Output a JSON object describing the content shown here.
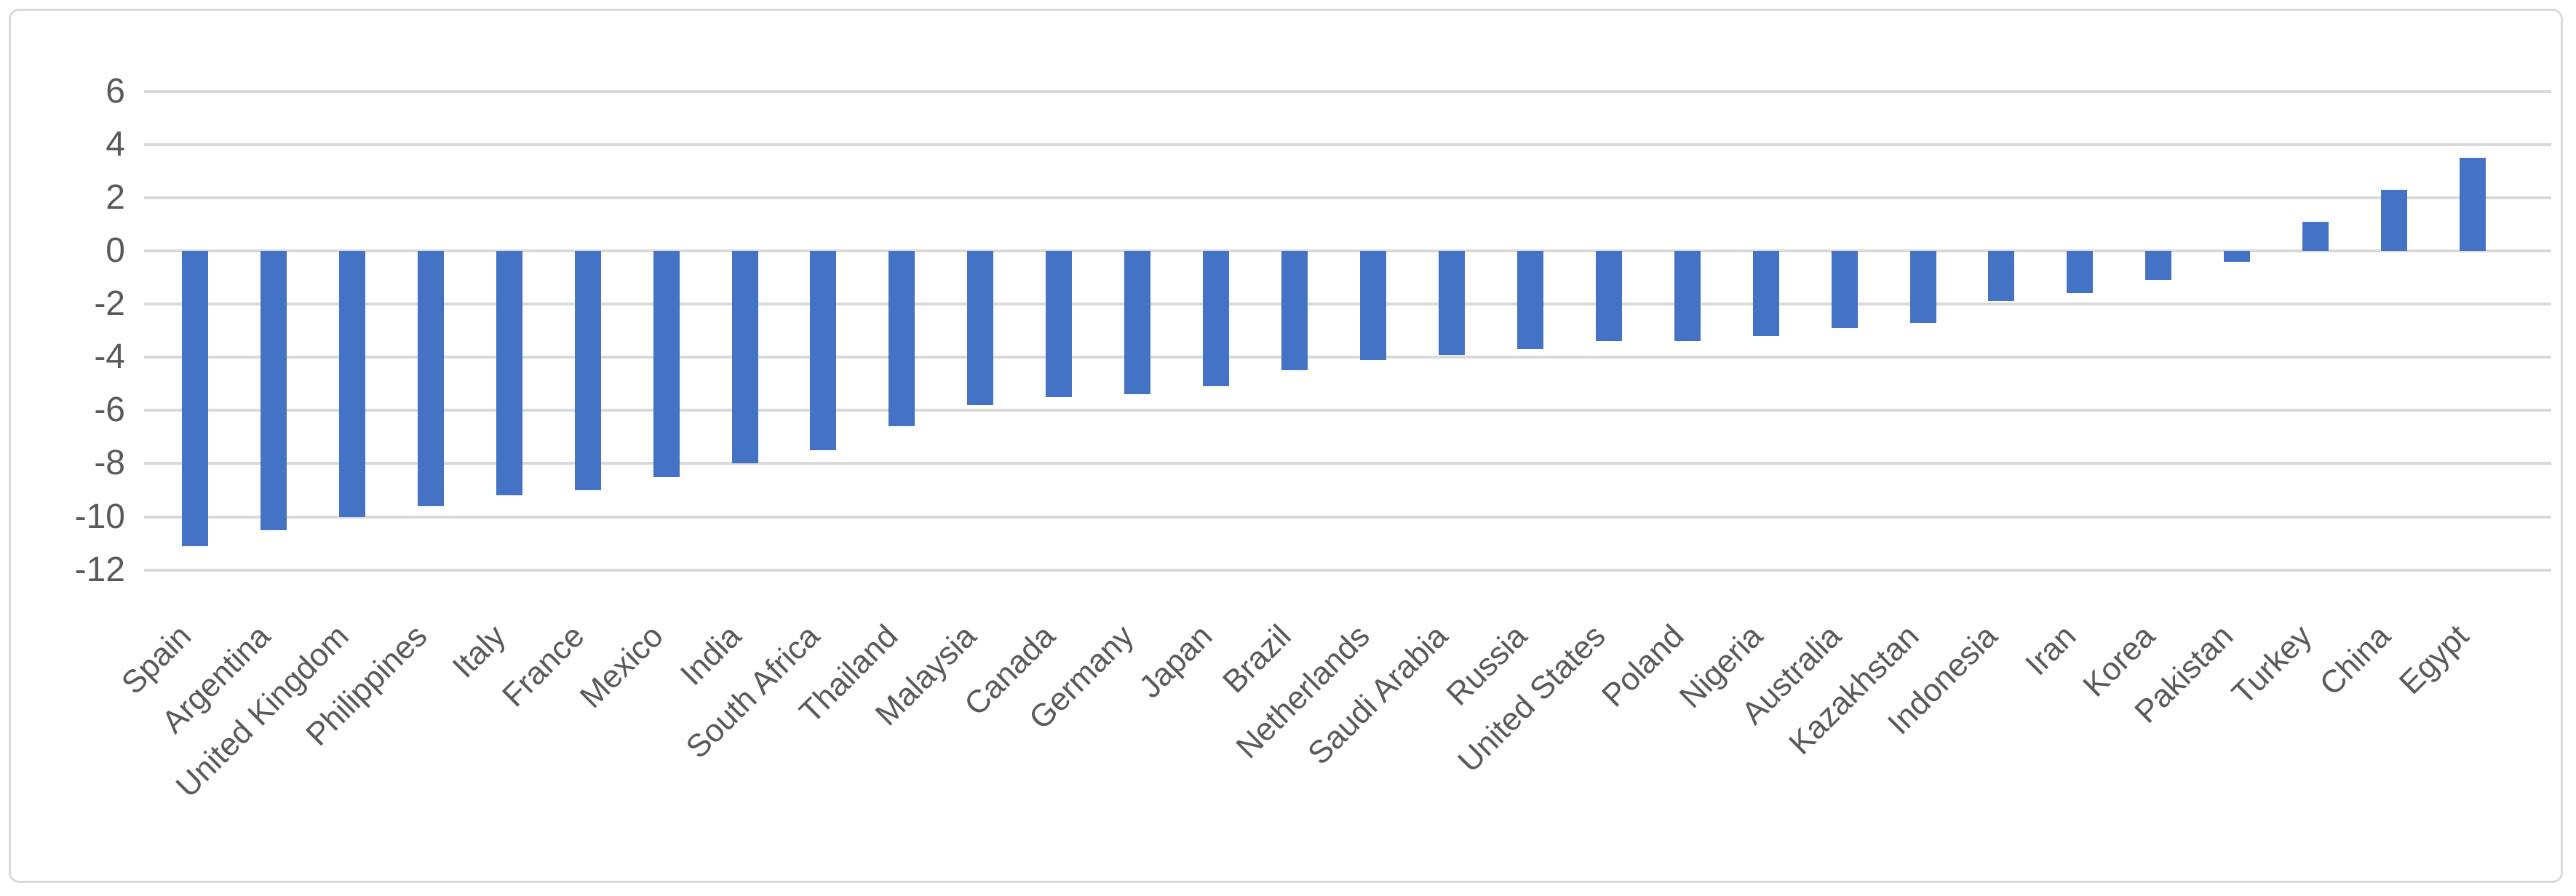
{
  "chart_data": {
    "type": "bar",
    "title": "",
    "xlabel": "",
    "ylabel": "",
    "legend": "none",
    "grid": "horizontal",
    "ylim": [
      -12,
      6
    ],
    "yticks": [
      6,
      4,
      2,
      0,
      -2,
      -4,
      -6,
      -8,
      -10,
      -12
    ],
    "bar_color": "#4472C4",
    "gridline_color": "#D9D9D9",
    "tick_label_color": "#595959",
    "frame_border_color": "#D9D9D9",
    "categories": [
      "Spain",
      "Argentina",
      "United Kingdom",
      "Philippines",
      "Italy",
      "France",
      "Mexico",
      "India",
      "South Africa",
      "Thailand",
      "Malaysia",
      "Canada",
      "Germany",
      "Japan",
      "Brazil",
      "Netherlands",
      "Saudi Arabia",
      "Russia",
      "United States",
      "Poland",
      "Nigeria",
      "Australia",
      "Kazakhstan",
      "Indonesia",
      "Iran",
      "Korea",
      "Pakistan",
      "Turkey",
      "China",
      "Egypt"
    ],
    "values": [
      -11.1,
      -10.5,
      -10.0,
      -9.6,
      -9.2,
      -9.0,
      -8.5,
      -8.0,
      -7.5,
      -6.6,
      -5.8,
      -5.5,
      -5.4,
      -5.1,
      -4.5,
      -4.1,
      -3.9,
      -3.7,
      -3.4,
      -3.4,
      -3.2,
      -2.9,
      -2.7,
      -1.9,
      -1.6,
      -1.1,
      -0.4,
      1.1,
      2.3,
      3.5
    ]
  }
}
